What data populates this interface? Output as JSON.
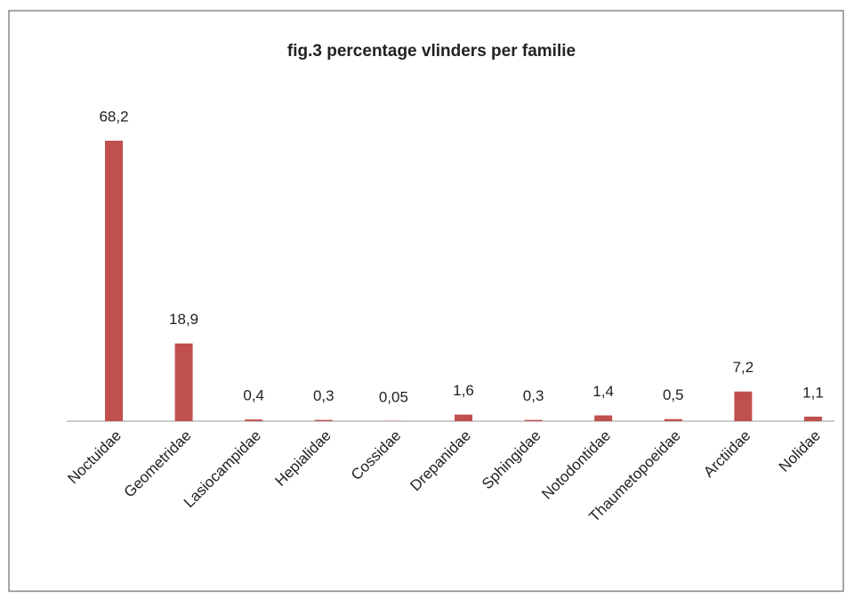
{
  "chart_data": {
    "type": "bar",
    "title": "fig.3  percentage vlinders per familie",
    "categories": [
      "Noctuidae",
      "Geometridae",
      "Lasiocampidae",
      "Hepialidae",
      "Cossidae",
      "Drepanidae",
      "Sphingidae",
      "Notodontidae",
      "Thaumetopoeidae",
      "Arctiidae",
      "Nolidae"
    ],
    "values": [
      68.2,
      18.9,
      0.4,
      0.3,
      0.05,
      1.6,
      0.3,
      1.4,
      0.5,
      7.2,
      1.1
    ],
    "value_labels": [
      "68,2",
      "18,9",
      "0,4",
      "0,3",
      "0,05",
      "1,6",
      "0,3",
      "1,4",
      "0,5",
      "7,2",
      "1,1"
    ],
    "color": "#c0504d"
  }
}
